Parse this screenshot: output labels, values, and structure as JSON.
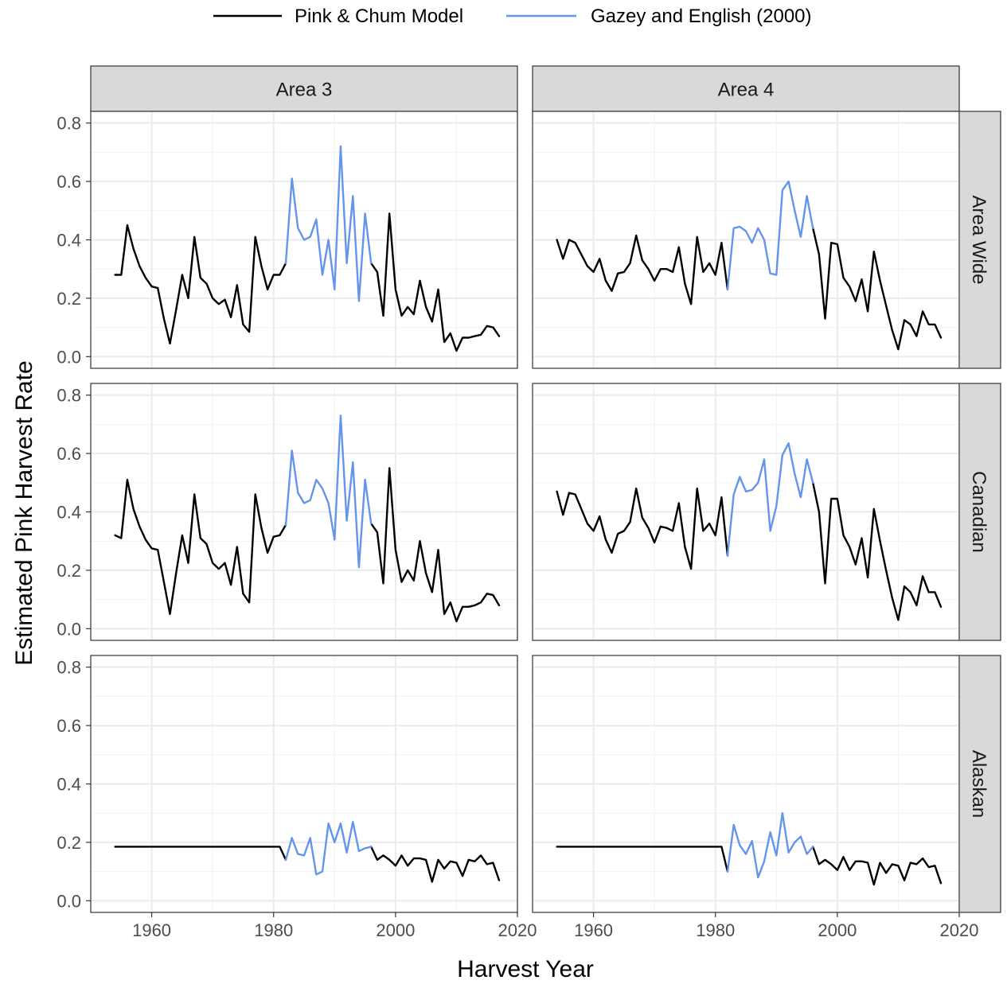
{
  "chart_data": {
    "type": "line",
    "xlabel": "Harvest Year",
    "ylabel": "Estimated Pink Harvest Rate",
    "xlim": [
      1950,
      2020
    ],
    "ylim": [
      0,
      0.8
    ],
    "x_ticks": [
      1960,
      1980,
      2000,
      2020
    ],
    "y_ticks": [
      0.0,
      0.2,
      0.4,
      0.6,
      0.8
    ],
    "x_tick_labels": [
      "1960",
      "1980",
      "2000",
      "2020"
    ],
    "y_tick_labels": [
      "0.0",
      "0.2",
      "0.4",
      "0.6",
      "0.8"
    ],
    "grid": true,
    "legend_position": "top",
    "colors": {
      "model": "#000000",
      "gazey": "#6495ED"
    },
    "legend": [
      {
        "key": "model",
        "label": "Pink & Chum Model"
      },
      {
        "key": "gazey",
        "label": "Gazey and English (2000)"
      }
    ],
    "columns": [
      "Area 3",
      "Area 4"
    ],
    "rows": [
      "Area Wide",
      "Canadian",
      "Alaskan"
    ],
    "panels": [
      {
        "row": 0,
        "col": 0,
        "model_x": [
          1954,
          1955,
          1956,
          1957,
          1958,
          1959,
          1960,
          1961,
          1962,
          1963,
          1964,
          1965,
          1966,
          1967,
          1968,
          1969,
          1970,
          1971,
          1972,
          1973,
          1974,
          1975,
          1976,
          1977,
          1978,
          1979,
          1980,
          1981,
          1982
        ],
        "model_y": [
          0.28,
          0.28,
          0.45,
          0.37,
          0.31,
          0.27,
          0.24,
          0.235,
          0.13,
          0.045,
          0.16,
          0.28,
          0.2,
          0.41,
          0.27,
          0.25,
          0.2,
          0.18,
          0.195,
          0.135,
          0.245,
          0.11,
          0.085,
          0.41,
          0.31,
          0.23,
          0.28,
          0.28,
          0.32
        ],
        "model2_x": [
          1996,
          1997,
          1998,
          1999,
          2000,
          2001,
          2002,
          2003,
          2004,
          2005,
          2006,
          2007,
          2008,
          2009,
          2010,
          2011,
          2012,
          2013,
          2014,
          2015,
          2016,
          2017
        ],
        "model2_y": [
          0.32,
          0.29,
          0.14,
          0.49,
          0.23,
          0.14,
          0.17,
          0.145,
          0.26,
          0.17,
          0.12,
          0.23,
          0.05,
          0.08,
          0.02,
          0.065,
          0.065,
          0.07,
          0.075,
          0.105,
          0.1,
          0.07
        ],
        "gazey_x": [
          1982,
          1983,
          1984,
          1985,
          1986,
          1987,
          1988,
          1989,
          1990,
          1991,
          1992,
          1993,
          1994,
          1995,
          1996
        ],
        "gazey_y": [
          0.32,
          0.61,
          0.44,
          0.4,
          0.41,
          0.47,
          0.28,
          0.4,
          0.23,
          0.72,
          0.32,
          0.55,
          0.19,
          0.49,
          0.32
        ]
      },
      {
        "row": 0,
        "col": 1,
        "model_x": [
          1954,
          1955,
          1956,
          1957,
          1958,
          1959,
          1960,
          1961,
          1962,
          1963,
          1964,
          1965,
          1966,
          1967,
          1968,
          1969,
          1970,
          1971,
          1972,
          1973,
          1974,
          1975,
          1976,
          1977,
          1978,
          1979,
          1980,
          1981,
          1982
        ],
        "model_y": [
          0.4,
          0.335,
          0.4,
          0.39,
          0.35,
          0.31,
          0.29,
          0.335,
          0.26,
          0.225,
          0.285,
          0.29,
          0.32,
          0.415,
          0.33,
          0.3,
          0.26,
          0.3,
          0.3,
          0.29,
          0.375,
          0.25,
          0.18,
          0.41,
          0.29,
          0.32,
          0.28,
          0.39,
          0.23
        ],
        "model2_x": [
          1996,
          1997,
          1998,
          1999,
          2000,
          2001,
          2002,
          2003,
          2004,
          2005,
          2006,
          2007,
          2008,
          2009,
          2010,
          2011,
          2012,
          2013,
          2014,
          2015,
          2016,
          2017
        ],
        "model2_y": [
          0.44,
          0.35,
          0.13,
          0.39,
          0.385,
          0.27,
          0.24,
          0.19,
          0.265,
          0.155,
          0.36,
          0.26,
          0.175,
          0.09,
          0.025,
          0.125,
          0.11,
          0.07,
          0.155,
          0.11,
          0.11,
          0.065
        ],
        "gazey_x": [
          1982,
          1983,
          1984,
          1985,
          1986,
          1987,
          1988,
          1989,
          1990,
          1991,
          1992,
          1993,
          1994,
          1995,
          1996
        ],
        "gazey_y": [
          0.23,
          0.44,
          0.445,
          0.43,
          0.39,
          0.44,
          0.4,
          0.285,
          0.28,
          0.57,
          0.6,
          0.5,
          0.41,
          0.55,
          0.44
        ]
      },
      {
        "row": 1,
        "col": 0,
        "model_x": [
          1954,
          1955,
          1956,
          1957,
          1958,
          1959,
          1960,
          1961,
          1962,
          1963,
          1964,
          1965,
          1966,
          1967,
          1968,
          1969,
          1970,
          1971,
          1972,
          1973,
          1974,
          1975,
          1976,
          1977,
          1978,
          1979,
          1980,
          1981,
          1982
        ],
        "model_y": [
          0.32,
          0.31,
          0.51,
          0.41,
          0.35,
          0.305,
          0.275,
          0.27,
          0.16,
          0.05,
          0.19,
          0.32,
          0.225,
          0.46,
          0.31,
          0.29,
          0.225,
          0.205,
          0.225,
          0.15,
          0.28,
          0.12,
          0.09,
          0.46,
          0.345,
          0.26,
          0.315,
          0.32,
          0.355
        ],
        "model2_x": [
          1996,
          1997,
          1998,
          1999,
          2000,
          2001,
          2002,
          2003,
          2004,
          2005,
          2006,
          2007,
          2008,
          2009,
          2010,
          2011,
          2012,
          2013,
          2014,
          2015,
          2016,
          2017
        ],
        "model2_y": [
          0.36,
          0.33,
          0.155,
          0.55,
          0.27,
          0.16,
          0.2,
          0.165,
          0.3,
          0.19,
          0.125,
          0.27,
          0.05,
          0.09,
          0.025,
          0.075,
          0.075,
          0.08,
          0.09,
          0.12,
          0.115,
          0.08
        ],
        "gazey_x": [
          1982,
          1983,
          1984,
          1985,
          1986,
          1987,
          1988,
          1989,
          1990,
          1991,
          1992,
          1993,
          1994,
          1995,
          1996
        ],
        "gazey_y": [
          0.355,
          0.61,
          0.465,
          0.43,
          0.44,
          0.51,
          0.48,
          0.43,
          0.305,
          0.73,
          0.37,
          0.57,
          0.21,
          0.51,
          0.36
        ]
      },
      {
        "row": 1,
        "col": 1,
        "model_x": [
          1954,
          1955,
          1956,
          1957,
          1958,
          1959,
          1960,
          1961,
          1962,
          1963,
          1964,
          1965,
          1966,
          1967,
          1968,
          1969,
          1970,
          1971,
          1972,
          1973,
          1974,
          1975,
          1976,
          1977,
          1978,
          1979,
          1980,
          1981,
          1982
        ],
        "model_y": [
          0.47,
          0.39,
          0.465,
          0.46,
          0.41,
          0.36,
          0.335,
          0.385,
          0.305,
          0.26,
          0.325,
          0.335,
          0.365,
          0.48,
          0.38,
          0.345,
          0.295,
          0.35,
          0.345,
          0.335,
          0.43,
          0.28,
          0.205,
          0.48,
          0.335,
          0.36,
          0.32,
          0.45,
          0.25
        ],
        "model2_x": [
          1996,
          1997,
          1998,
          1999,
          2000,
          2001,
          2002,
          2003,
          2004,
          2005,
          2006,
          2007,
          2008,
          2009,
          2010,
          2011,
          2012,
          2013,
          2014,
          2015,
          2016,
          2017
        ],
        "model2_y": [
          0.5,
          0.4,
          0.155,
          0.445,
          0.445,
          0.32,
          0.28,
          0.22,
          0.31,
          0.175,
          0.41,
          0.3,
          0.2,
          0.105,
          0.03,
          0.145,
          0.125,
          0.08,
          0.18,
          0.125,
          0.125,
          0.075
        ],
        "gazey_x": [
          1982,
          1983,
          1984,
          1985,
          1986,
          1987,
          1988,
          1989,
          1990,
          1991,
          1992,
          1993,
          1994,
          1995,
          1996
        ],
        "gazey_y": [
          0.25,
          0.46,
          0.52,
          0.47,
          0.475,
          0.5,
          0.58,
          0.335,
          0.42,
          0.595,
          0.635,
          0.53,
          0.45,
          0.58,
          0.5
        ]
      },
      {
        "row": 2,
        "col": 0,
        "model_x": [
          1954,
          1955,
          1956,
          1957,
          1958,
          1959,
          1960,
          1961,
          1962,
          1963,
          1964,
          1965,
          1966,
          1967,
          1968,
          1969,
          1970,
          1971,
          1972,
          1973,
          1974,
          1975,
          1976,
          1977,
          1978,
          1979,
          1980,
          1981,
          1982
        ],
        "model_y": [
          0.185,
          0.185,
          0.185,
          0.185,
          0.185,
          0.185,
          0.185,
          0.185,
          0.185,
          0.185,
          0.185,
          0.185,
          0.185,
          0.185,
          0.185,
          0.185,
          0.185,
          0.185,
          0.185,
          0.185,
          0.185,
          0.185,
          0.185,
          0.185,
          0.185,
          0.185,
          0.185,
          0.185,
          0.14
        ],
        "model2_x": [
          1996,
          1997,
          1998,
          1999,
          2000,
          2001,
          2002,
          2003,
          2004,
          2005,
          2006,
          2007,
          2008,
          2009,
          2010,
          2011,
          2012,
          2013,
          2014,
          2015,
          2016,
          2017
        ],
        "model2_y": [
          0.185,
          0.14,
          0.155,
          0.14,
          0.12,
          0.155,
          0.12,
          0.145,
          0.145,
          0.14,
          0.065,
          0.14,
          0.11,
          0.135,
          0.13,
          0.085,
          0.14,
          0.135,
          0.155,
          0.125,
          0.13,
          0.07
        ],
        "gazey_x": [
          1982,
          1983,
          1984,
          1985,
          1986,
          1987,
          1988,
          1989,
          1990,
          1991,
          1992,
          1993,
          1994,
          1995,
          1996
        ],
        "gazey_y": [
          0.14,
          0.215,
          0.16,
          0.155,
          0.215,
          0.09,
          0.1,
          0.265,
          0.2,
          0.265,
          0.165,
          0.27,
          0.17,
          0.18,
          0.185
        ]
      },
      {
        "row": 2,
        "col": 1,
        "model_x": [
          1954,
          1955,
          1956,
          1957,
          1958,
          1959,
          1960,
          1961,
          1962,
          1963,
          1964,
          1965,
          1966,
          1967,
          1968,
          1969,
          1970,
          1971,
          1972,
          1973,
          1974,
          1975,
          1976,
          1977,
          1978,
          1979,
          1980,
          1981,
          1982
        ],
        "model_y": [
          0.185,
          0.185,
          0.185,
          0.185,
          0.185,
          0.185,
          0.185,
          0.185,
          0.185,
          0.185,
          0.185,
          0.185,
          0.185,
          0.185,
          0.185,
          0.185,
          0.185,
          0.185,
          0.185,
          0.185,
          0.185,
          0.185,
          0.185,
          0.185,
          0.185,
          0.185,
          0.185,
          0.185,
          0.1
        ],
        "model2_x": [
          1996,
          1997,
          1998,
          1999,
          2000,
          2001,
          2002,
          2003,
          2004,
          2005,
          2006,
          2007,
          2008,
          2009,
          2010,
          2011,
          2012,
          2013,
          2014,
          2015,
          2016,
          2017
        ],
        "model2_y": [
          0.185,
          0.125,
          0.14,
          0.125,
          0.105,
          0.15,
          0.105,
          0.135,
          0.135,
          0.13,
          0.055,
          0.13,
          0.095,
          0.125,
          0.12,
          0.07,
          0.13,
          0.125,
          0.145,
          0.115,
          0.12,
          0.06
        ],
        "gazey_x": [
          1982,
          1983,
          1984,
          1985,
          1986,
          1987,
          1988,
          1989,
          1990,
          1991,
          1992,
          1993,
          1994,
          1995,
          1996
        ],
        "gazey_y": [
          0.1,
          0.26,
          0.19,
          0.16,
          0.205,
          0.08,
          0.135,
          0.235,
          0.155,
          0.3,
          0.165,
          0.2,
          0.22,
          0.16,
          0.185
        ]
      }
    ]
  }
}
